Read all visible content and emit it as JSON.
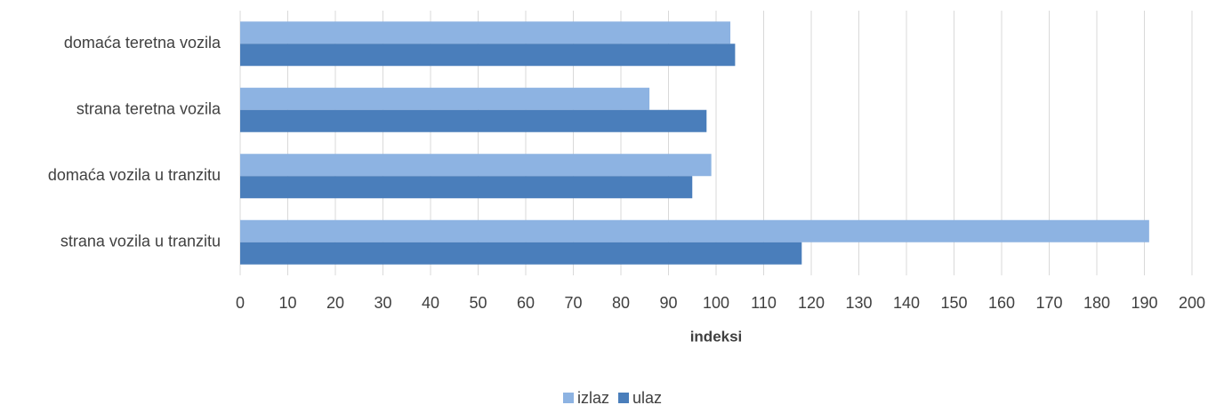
{
  "chart_data": {
    "type": "hbar",
    "categories": [
      "domaća teretna vozila",
      "strana teretna vozila",
      "domaća vozila u tranzitu",
      "strana vozila u tranzitu"
    ],
    "series": [
      {
        "name": "izlaz",
        "color": "#8db3e2",
        "values": [
          103,
          86,
          99,
          191
        ]
      },
      {
        "name": "ulaz",
        "color": "#4a7ebb",
        "values": [
          104,
          98,
          95,
          118
        ]
      }
    ],
    "xlabel": "indeksi",
    "xlim": [
      0,
      200
    ],
    "xticks": [
      0,
      10,
      20,
      30,
      40,
      50,
      60,
      70,
      80,
      90,
      100,
      110,
      120,
      130,
      140,
      150,
      160,
      170,
      180,
      190,
      200
    ],
    "grid": true,
    "legend": "bottom"
  }
}
